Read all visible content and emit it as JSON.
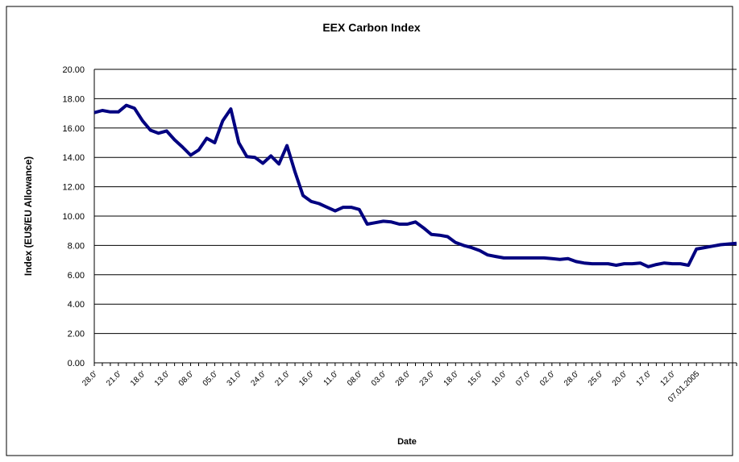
{
  "chart_data": {
    "type": "line",
    "title": "EEX  Carbon  Index",
    "x_label": "Date",
    "y_label": "Index (EU$/EU Allowance)",
    "categories": [
      "28.0'",
      null,
      null,
      "21.0'",
      null,
      null,
      "18.0'",
      null,
      null,
      "13.0'",
      null,
      null,
      "08.0'",
      null,
      null,
      "05.0'",
      null,
      null,
      "31.0'",
      null,
      null,
      "24.0'",
      null,
      null,
      "21.0'",
      null,
      null,
      "16.0'",
      null,
      null,
      "11.0'",
      null,
      null,
      "08.0'",
      null,
      null,
      "03.0'",
      null,
      null,
      "28.0'",
      null,
      null,
      "23.0'",
      null,
      null,
      "18.0'",
      null,
      null,
      "15.0'",
      null,
      null,
      "10.0'",
      null,
      null,
      "07.0'",
      null,
      null,
      "02.0'",
      null,
      null,
      "28.0'",
      null,
      null,
      "25.0'",
      null,
      null,
      "20.0'",
      null,
      null,
      "17.0'",
      null,
      null,
      "12.0'",
      null,
      null,
      "07.01.2005",
      null,
      null,
      null,
      null,
      null
    ],
    "series": [
      {
        "name": "EEX Carbon Index",
        "color": "#000080",
        "values": [
          17.05,
          17.2,
          17.1,
          17.1,
          17.55,
          17.35,
          16.5,
          15.85,
          15.65,
          15.8,
          15.2,
          14.7,
          14.15,
          14.5,
          15.3,
          15.0,
          16.5,
          17.3,
          15.0,
          14.05,
          14.0,
          13.6,
          14.1,
          13.55,
          14.8,
          13.0,
          11.4,
          11.0,
          10.85,
          10.6,
          10.35,
          10.6,
          10.6,
          10.45,
          9.45,
          9.55,
          9.65,
          9.6,
          9.45,
          9.45,
          9.6,
          9.2,
          8.75,
          8.7,
          8.6,
          8.2,
          8.0,
          7.85,
          7.65,
          7.35,
          7.25,
          7.15,
          7.15,
          7.15,
          7.15,
          7.15,
          7.15,
          7.1,
          7.05,
          7.1,
          6.9,
          6.8,
          6.75,
          6.75,
          6.75,
          6.65,
          6.75,
          6.75,
          6.8,
          6.55,
          6.7,
          6.8,
          6.75,
          6.75,
          6.65,
          7.75,
          7.85,
          7.95,
          8.05,
          8.1,
          8.15
        ]
      }
    ],
    "ylim": [
      0,
      20
    ],
    "yticks": [
      {
        "value": 0,
        "label": "0.00"
      },
      {
        "value": 2,
        "label": "2.00"
      },
      {
        "value": 4,
        "label": "4.00"
      },
      {
        "value": 6,
        "label": "6.00"
      },
      {
        "value": 8,
        "label": "8.00"
      },
      {
        "value": 10,
        "label": "10.00"
      },
      {
        "value": 12,
        "label": "12.00"
      },
      {
        "value": 14,
        "label": "14.00"
      },
      {
        "value": 16,
        "label": "16.00"
      },
      {
        "value": 18,
        "label": "18.00"
      },
      {
        "value": 20,
        "label": "20.00"
      }
    ],
    "grid": true
  }
}
